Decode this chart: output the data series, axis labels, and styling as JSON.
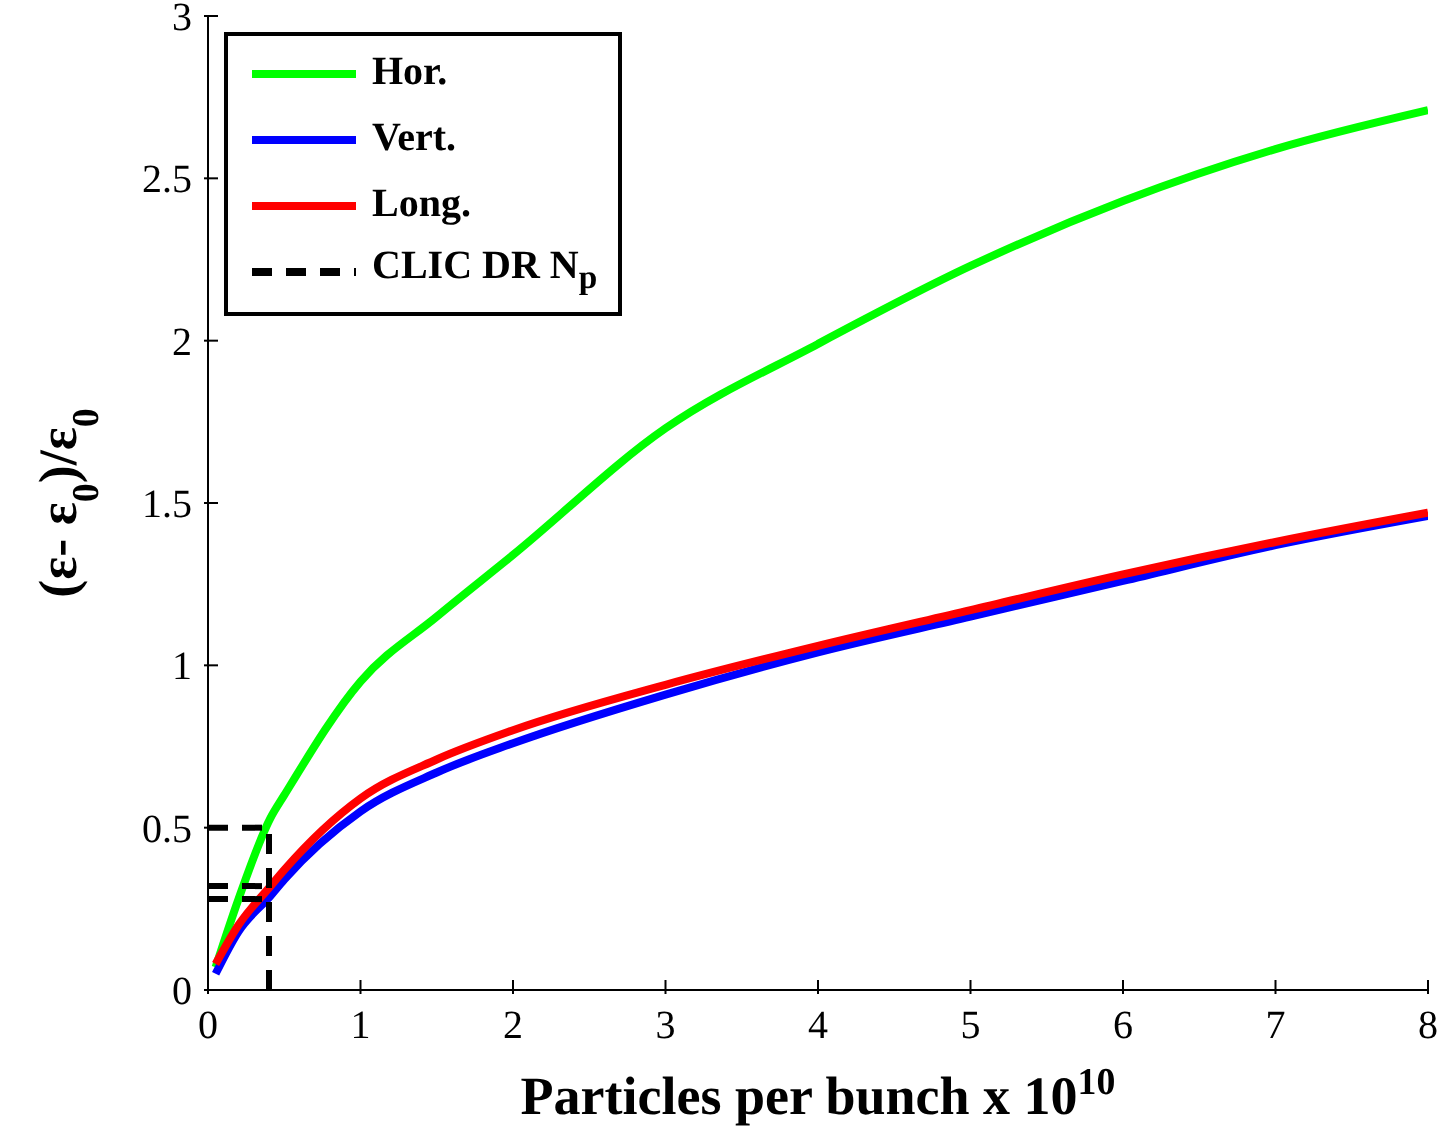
{
  "chart_data": {
    "type": "line",
    "xlabel": "Particles per bunch x 10$^{10}$",
    "ylabel": "(ε- ε$_{0}$)/ε$_{0}$",
    "xlim": [
      0,
      8
    ],
    "xticks": [
      0,
      1,
      2,
      3,
      4,
      5,
      6,
      7,
      8
    ],
    "ylim": [
      0,
      3
    ],
    "yticks": [
      0,
      0.5,
      1,
      1.5,
      2,
      2.5,
      3
    ],
    "grid": false,
    "legend": "top left",
    "marker": "none",
    "series": [
      {
        "name": "Hor.",
        "color": "#00ff00",
        "x": [
          0.05,
          0.2,
          0.41,
          0.5,
          1,
          1.5,
          2,
          3,
          4,
          5,
          6,
          7,
          8
        ],
        "values": [
          0.07,
          0.28,
          0.53,
          0.6,
          0.95,
          1.15,
          1.34,
          1.73,
          1.99,
          2.23,
          2.43,
          2.59,
          2.71
        ]
      },
      {
        "name": "Vert.",
        "color": "#0000ff",
        "x": [
          0.05,
          0.2,
          0.41,
          0.5,
          1,
          1.5,
          2,
          3,
          4,
          5,
          6,
          7,
          8
        ],
        "values": [
          0.05,
          0.18,
          0.29,
          0.34,
          0.55,
          0.67,
          0.76,
          0.91,
          1.04,
          1.15,
          1.26,
          1.37,
          1.46
        ]
      },
      {
        "name": "Long.",
        "color": "#ff0000",
        "x": [
          0.05,
          0.2,
          0.41,
          0.5,
          1,
          1.5,
          2,
          3,
          4,
          5,
          6,
          7,
          8
        ],
        "values": [
          0.08,
          0.2,
          0.32,
          0.37,
          0.59,
          0.71,
          0.8,
          0.94,
          1.06,
          1.17,
          1.28,
          1.38,
          1.47
        ]
      },
      {
        "name": "CLIC DR N$_{p}$",
        "color": "#000000",
        "line_style": "dashed",
        "x": [
          0.4,
          0.4
        ],
        "values": [
          0,
          0.5
        ]
      },
      {
        "color": "#000000",
        "line_style": "dashed",
        "x": [
          0,
          0.4
        ],
        "values": [
          0.5,
          0.5
        ]
      },
      {
        "color": "#000000",
        "line_style": "dashed",
        "x": [
          0,
          0.4
        ],
        "values": [
          0.32,
          0.32
        ]
      },
      {
        "color": "#000000",
        "line_style": "dashed",
        "x": [
          0,
          0.4
        ],
        "values": [
          0.28,
          0.28
        ]
      }
    ]
  }
}
